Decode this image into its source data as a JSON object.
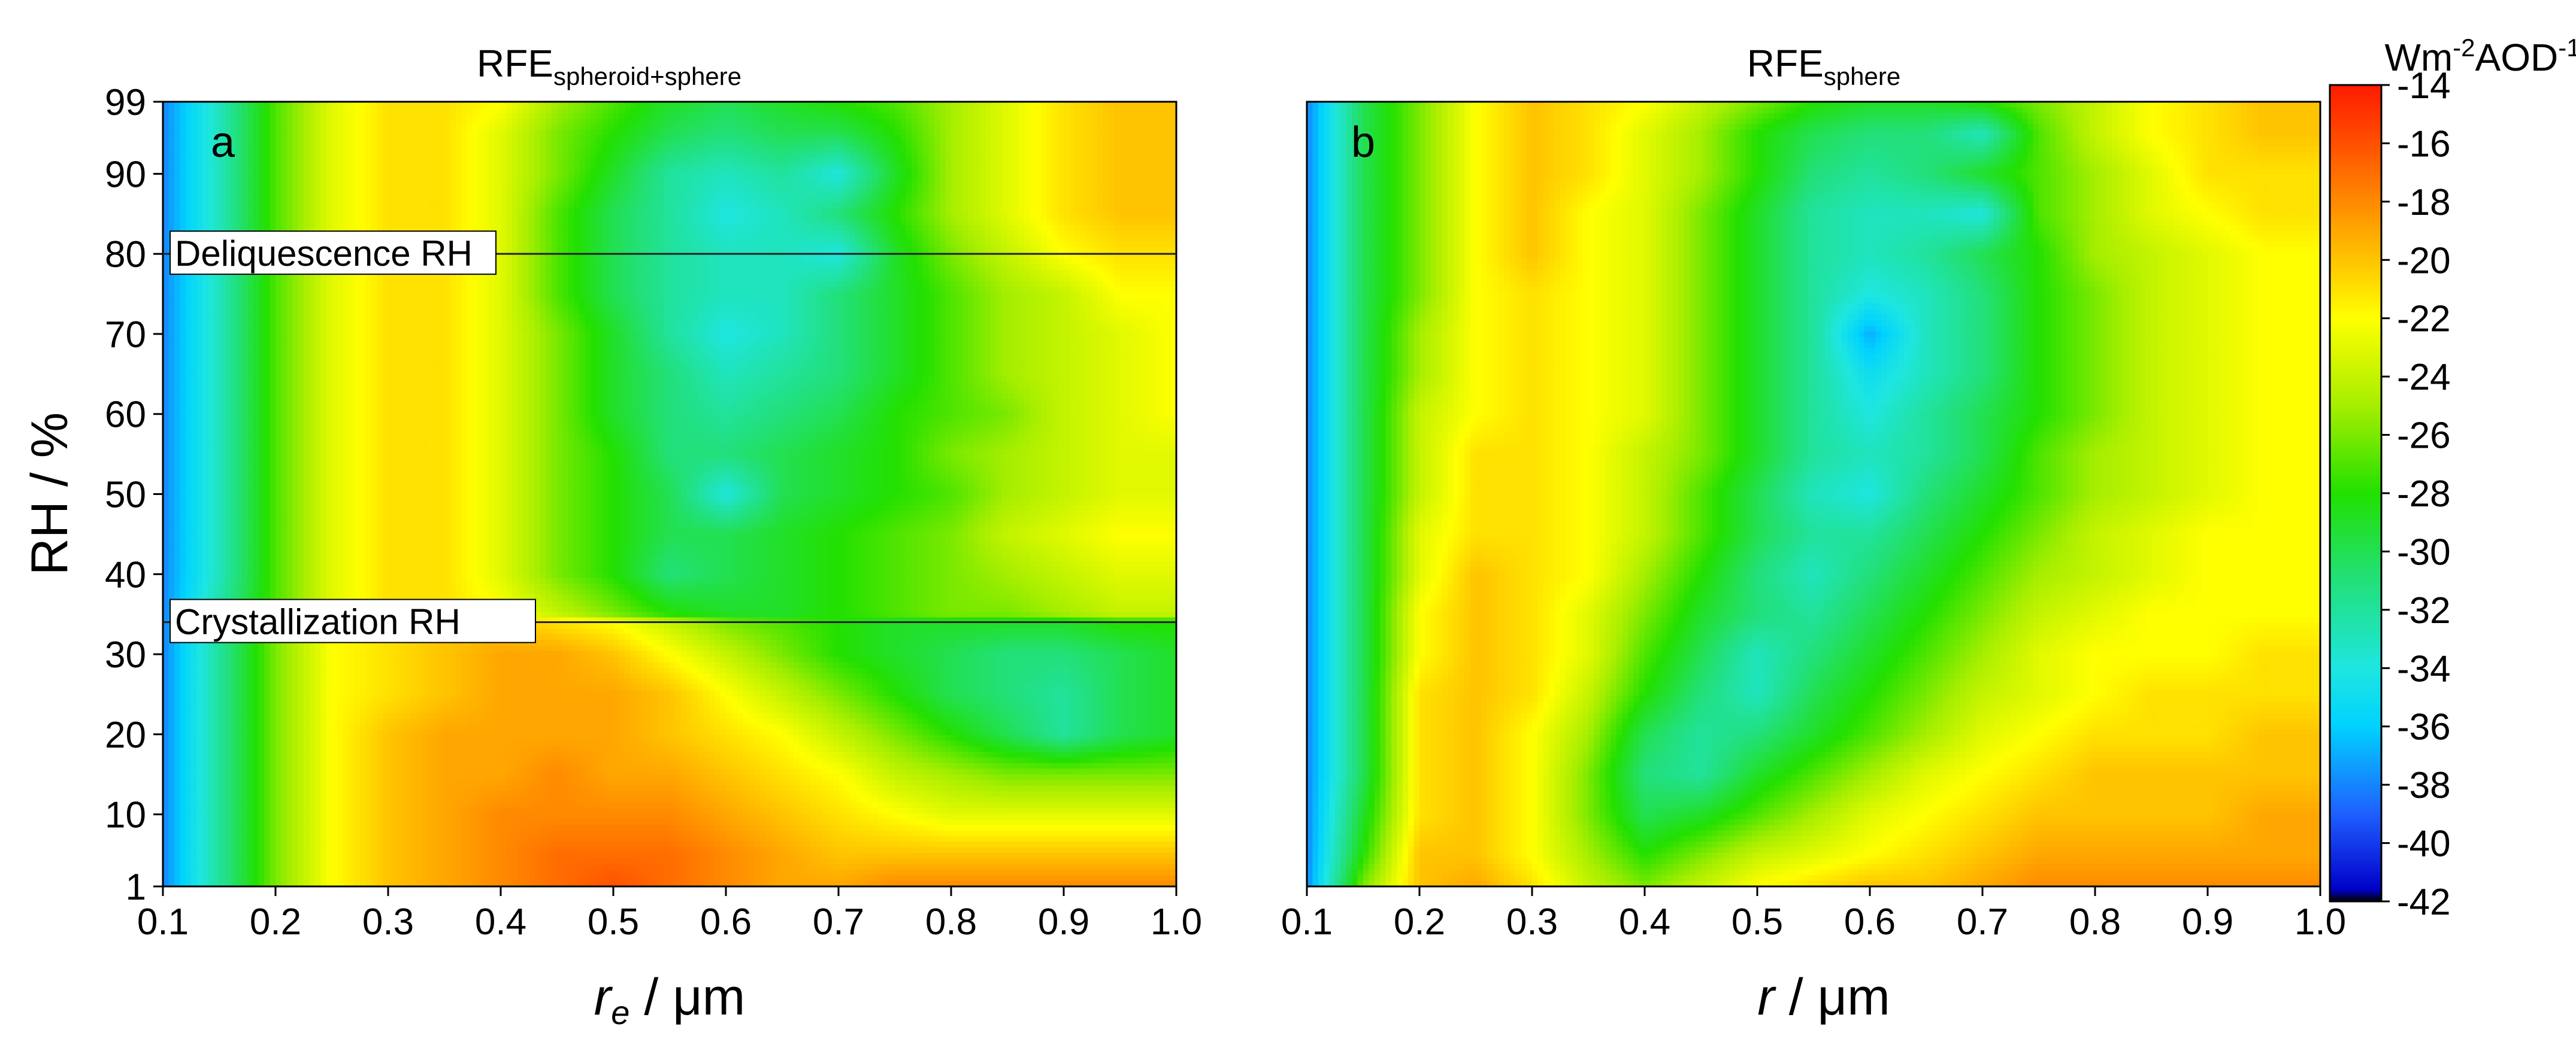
{
  "chart_data": [
    {
      "type": "heatmap",
      "panel_label": "a",
      "title_main": "RFE",
      "title_sub": "spheroid+sphere",
      "xlabel_italic": "r",
      "xlabel_sub": "e",
      "xlabel_rest": " / μm",
      "ylabel": "RH / %",
      "xlim": [
        0.1,
        1.0
      ],
      "ylim": [
        1,
        99
      ],
      "x_ticks": [
        "0.1",
        "0.2",
        "0.3",
        "0.4",
        "0.5",
        "0.6",
        "0.7",
        "0.8",
        "0.9",
        "1.0"
      ],
      "y_ticks": [
        "1",
        "10",
        "20",
        "30",
        "40",
        "50",
        "60",
        "70",
        "80",
        "90",
        "99"
      ],
      "annotations": [
        {
          "text": "Deliquescence RH",
          "rh": 80
        },
        {
          "text": "Crystallization RH",
          "rh": 34
        }
      ],
      "x": [
        0.1,
        0.15,
        0.2,
        0.25,
        0.3,
        0.35,
        0.4,
        0.45,
        0.5,
        0.55,
        0.6,
        0.65,
        0.7,
        0.75,
        0.8,
        0.85,
        0.9,
        0.95,
        1.0
      ],
      "y": [
        1,
        5,
        10,
        15,
        20,
        25,
        30,
        34,
        35,
        40,
        45,
        50,
        55,
        60,
        65,
        70,
        75,
        80,
        85,
        90,
        95,
        99
      ],
      "z": [
        [
          -38,
          -32,
          -26,
          -22,
          -20,
          -19,
          -18,
          -17,
          -16,
          -17,
          -18,
          -19,
          -19,
          -18,
          -18,
          -18,
          -18,
          -18,
          -18
        ],
        [
          -38,
          -32,
          -26,
          -22,
          -20,
          -19,
          -18,
          -17,
          -17,
          -17,
          -18,
          -19,
          -20,
          -20,
          -20,
          -20,
          -20,
          -20,
          -20
        ],
        [
          -38,
          -32,
          -26,
          -22,
          -20,
          -19,
          -18,
          -18,
          -18,
          -18,
          -19,
          -20,
          -21,
          -22,
          -23,
          -23,
          -23,
          -23,
          -23
        ],
        [
          -38,
          -32,
          -26,
          -22,
          -20,
          -19,
          -19,
          -18,
          -19,
          -19,
          -20,
          -21,
          -22,
          -24,
          -25,
          -26,
          -26,
          -26,
          -26
        ],
        [
          -38,
          -32,
          -26,
          -22,
          -20,
          -19,
          -19,
          -19,
          -19,
          -20,
          -21,
          -22,
          -24,
          -26,
          -28,
          -30,
          -32,
          -30,
          -29
        ],
        [
          -38,
          -32,
          -26,
          -22,
          -21,
          -20,
          -19,
          -19,
          -19,
          -20,
          -22,
          -24,
          -26,
          -28,
          -30,
          -31,
          -32,
          -30,
          -29
        ],
        [
          -38,
          -32,
          -26,
          -22,
          -21,
          -20,
          -19,
          -19,
          -20,
          -22,
          -24,
          -26,
          -28,
          -29,
          -30,
          -31,
          -31,
          -30,
          -29
        ],
        [
          -38,
          -32,
          -26,
          -22,
          -21,
          -20,
          -20,
          -21,
          -22,
          -24,
          -26,
          -27,
          -28,
          -29,
          -29,
          -29,
          -29,
          -28,
          -28
        ],
        [
          -38,
          -32,
          -27,
          -23,
          -21,
          -21,
          -22,
          -24,
          -26,
          -28,
          -29,
          -29,
          -28,
          -27,
          -26,
          -26,
          -25,
          -24,
          -24
        ],
        [
          -38,
          -33,
          -27,
          -23,
          -21,
          -21,
          -23,
          -26,
          -28,
          -31,
          -30,
          -29,
          -28,
          -27,
          -26,
          -25,
          -24,
          -23,
          -23
        ],
        [
          -38,
          -33,
          -27,
          -23,
          -21,
          -21,
          -23,
          -26,
          -28,
          -30,
          -30,
          -29,
          -28,
          -27,
          -26,
          -24,
          -23,
          -22,
          -22
        ],
        [
          -38,
          -33,
          -27,
          -23,
          -21,
          -21,
          -23,
          -26,
          -28,
          -30,
          -34,
          -30,
          -29,
          -28,
          -27,
          -25,
          -24,
          -23,
          -23
        ],
        [
          -38,
          -33,
          -27,
          -23,
          -21,
          -21,
          -23,
          -26,
          -28,
          -31,
          -31,
          -30,
          -29,
          -28,
          -26,
          -25,
          -24,
          -23,
          -23
        ],
        [
          -38,
          -33,
          -27,
          -23,
          -21,
          -21,
          -23,
          -26,
          -29,
          -31,
          -32,
          -31,
          -30,
          -28,
          -27,
          -26,
          -24,
          -23,
          -22
        ],
        [
          -38,
          -33,
          -27,
          -23,
          -21,
          -21,
          -23,
          -26,
          -29,
          -31,
          -33,
          -32,
          -31,
          -29,
          -27,
          -25,
          -24,
          -23,
          -22
        ],
        [
          -38,
          -33,
          -27,
          -23,
          -21,
          -21,
          -23,
          -26,
          -29,
          -32,
          -34,
          -33,
          -31,
          -29,
          -27,
          -25,
          -24,
          -23,
          -22
        ],
        [
          -38,
          -33,
          -27,
          -23,
          -21,
          -21,
          -23,
          -27,
          -30,
          -32,
          -33,
          -33,
          -31,
          -29,
          -27,
          -25,
          -24,
          -22,
          -22
        ],
        [
          -38,
          -33,
          -27,
          -23,
          -21,
          -21,
          -23,
          -27,
          -30,
          -32,
          -33,
          -33,
          -34,
          -29,
          -26,
          -24,
          -22,
          -21,
          -21
        ],
        [
          -38,
          -33,
          -27,
          -23,
          -21,
          -21,
          -23,
          -27,
          -30,
          -32,
          -34,
          -33,
          -31,
          -28,
          -25,
          -23,
          -21,
          -20,
          -20
        ],
        [
          -38,
          -33,
          -27,
          -23,
          -21,
          -21,
          -23,
          -26,
          -29,
          -32,
          -33,
          -32,
          -34,
          -29,
          -25,
          -23,
          -21,
          -20,
          -20
        ],
        [
          -38,
          -33,
          -27,
          -23,
          -21,
          -21,
          -23,
          -26,
          -28,
          -30,
          -31,
          -30,
          -30,
          -28,
          -25,
          -23,
          -21,
          -20,
          -20
        ],
        [
          -38,
          -33,
          -27,
          -23,
          -21,
          -21,
          -22,
          -25,
          -27,
          -29,
          -30,
          -29,
          -28,
          -27,
          -25,
          -23,
          -21,
          -20,
          -20
        ]
      ]
    },
    {
      "type": "heatmap",
      "panel_label": "b",
      "title_main": "RFE",
      "title_sub": "sphere",
      "xlabel_italic": "r",
      "xlabel_sub": "",
      "xlabel_rest": " / μm",
      "ylabel": "",
      "xlim": [
        0.1,
        1.0
      ],
      "ylim": [
        1,
        99
      ],
      "x_ticks": [
        "0.1",
        "0.2",
        "0.3",
        "0.4",
        "0.5",
        "0.6",
        "0.7",
        "0.8",
        "0.9",
        "1.0"
      ],
      "y_ticks": [],
      "annotations": [],
      "x": [
        0.1,
        0.15,
        0.2,
        0.25,
        0.3,
        0.35,
        0.4,
        0.45,
        0.5,
        0.55,
        0.6,
        0.65,
        0.7,
        0.75,
        0.8,
        0.85,
        0.9,
        0.95,
        1.0
      ],
      "y": [
        1,
        5,
        10,
        15,
        20,
        25,
        30,
        35,
        40,
        45,
        50,
        55,
        60,
        65,
        70,
        75,
        80,
        85,
        90,
        95,
        99
      ],
      "z": [
        [
          -38,
          -26,
          -20,
          -19,
          -21,
          -24,
          -26,
          -24,
          -22,
          -21,
          -20,
          -20,
          -19,
          -18,
          -18,
          -18,
          -18,
          -18,
          -18
        ],
        [
          -38,
          -28,
          -20,
          -20,
          -22,
          -25,
          -28,
          -26,
          -24,
          -23,
          -22,
          -21,
          -20,
          -19,
          -19,
          -19,
          -19,
          -19,
          -19
        ],
        [
          -38,
          -29,
          -21,
          -20,
          -22,
          -26,
          -30,
          -29,
          -27,
          -25,
          -23,
          -22,
          -21,
          -20,
          -20,
          -20,
          -20,
          -19,
          -19
        ],
        [
          -38,
          -30,
          -21,
          -20,
          -22,
          -26,
          -31,
          -32,
          -29,
          -27,
          -25,
          -23,
          -22,
          -21,
          -20,
          -20,
          -20,
          -20,
          -20
        ],
        [
          -38,
          -30,
          -21,
          -20,
          -22,
          -25,
          -30,
          -32,
          -31,
          -29,
          -27,
          -25,
          -23,
          -22,
          -21,
          -21,
          -21,
          -20,
          -20
        ],
        [
          -38,
          -30,
          -21,
          -20,
          -21,
          -24,
          -28,
          -31,
          -33,
          -30,
          -28,
          -26,
          -24,
          -23,
          -22,
          -21,
          -21,
          -21,
          -21
        ],
        [
          -38,
          -30,
          -22,
          -20,
          -21,
          -23,
          -27,
          -30,
          -33,
          -31,
          -29,
          -27,
          -25,
          -23,
          -22,
          -22,
          -22,
          -21,
          -21
        ],
        [
          -38,
          -30,
          -22,
          -20,
          -21,
          -23,
          -26,
          -29,
          -31,
          -32,
          -30,
          -28,
          -26,
          -24,
          -23,
          -22,
          -22,
          -22,
          -22
        ],
        [
          -38,
          -30,
          -23,
          -20,
          -21,
          -22,
          -25,
          -28,
          -31,
          -33,
          -31,
          -29,
          -27,
          -25,
          -24,
          -23,
          -22,
          -22,
          -22
        ],
        [
          -38,
          -30,
          -23,
          -21,
          -21,
          -22,
          -24,
          -27,
          -30,
          -32,
          -32,
          -30,
          -28,
          -26,
          -24,
          -23,
          -22,
          -22,
          -22
        ],
        [
          -38,
          -30,
          -24,
          -21,
          -21,
          -22,
          -24,
          -27,
          -30,
          -33,
          -34,
          -31,
          -29,
          -27,
          -25,
          -24,
          -23,
          -22,
          -22
        ],
        [
          -38,
          -30,
          -24,
          -21,
          -21,
          -22,
          -24,
          -26,
          -29,
          -32,
          -33,
          -32,
          -30,
          -27,
          -25,
          -24,
          -23,
          -22,
          -22
        ],
        [
          -38,
          -30,
          -24,
          -22,
          -21,
          -22,
          -23,
          -26,
          -29,
          -32,
          -34,
          -32,
          -30,
          -28,
          -26,
          -24,
          -23,
          -22,
          -22
        ],
        [
          -38,
          -30,
          -25,
          -22,
          -21,
          -22,
          -23,
          -26,
          -29,
          -32,
          -35,
          -33,
          -31,
          -28,
          -26,
          -24,
          -23,
          -22,
          -22
        ],
        [
          -38,
          -30,
          -25,
          -22,
          -21,
          -22,
          -23,
          -26,
          -29,
          -32,
          -37,
          -33,
          -31,
          -28,
          -26,
          -24,
          -23,
          -22,
          -22
        ],
        [
          -38,
          -30,
          -26,
          -22,
          -21,
          -22,
          -23,
          -26,
          -29,
          -32,
          -34,
          -33,
          -31,
          -28,
          -26,
          -24,
          -23,
          -22,
          -22
        ],
        [
          -38,
          -30,
          -26,
          -22,
          -20,
          -22,
          -23,
          -26,
          -29,
          -32,
          -33,
          -32,
          -30,
          -28,
          -25,
          -24,
          -23,
          -22,
          -22
        ],
        [
          -38,
          -30,
          -26,
          -22,
          -20,
          -22,
          -23,
          -26,
          -29,
          -32,
          -33,
          -33,
          -34,
          -27,
          -25,
          -23,
          -22,
          -21,
          -21
        ],
        [
          -38,
          -30,
          -26,
          -22,
          -20,
          -21,
          -23,
          -25,
          -28,
          -31,
          -32,
          -31,
          -29,
          -27,
          -25,
          -23,
          -21,
          -21,
          -21
        ],
        [
          -38,
          -30,
          -26,
          -22,
          -20,
          -21,
          -23,
          -25,
          -28,
          -30,
          -31,
          -31,
          -33,
          -27,
          -24,
          -22,
          -21,
          -20,
          -20
        ],
        [
          -38,
          -30,
          -26,
          -22,
          -20,
          -21,
          -22,
          -24,
          -26,
          -28,
          -29,
          -29,
          -28,
          -26,
          -24,
          -22,
          -21,
          -20,
          -20
        ]
      ]
    }
  ],
  "colorbar": {
    "unit_a": "Wm",
    "unit_b": "-2",
    "unit_c": "AOD",
    "unit_d": "-1",
    "min": -42,
    "max": -14,
    "ticks": [
      "-14",
      "-16",
      "-18",
      "-20",
      "-22",
      "-24",
      "-26",
      "-28",
      "-30",
      "-32",
      "-34",
      "-36",
      "-38",
      "-40",
      "-42"
    ],
    "color_stops": [
      {
        "v": -42,
        "c": "#000000"
      },
      {
        "v": -41.6,
        "c": "#0000c8"
      },
      {
        "v": -39,
        "c": "#1f5fff"
      },
      {
        "v": -36,
        "c": "#00d2ff"
      },
      {
        "v": -34,
        "c": "#1ee6e0"
      },
      {
        "v": -31,
        "c": "#22e07a"
      },
      {
        "v": -28,
        "c": "#22e000"
      },
      {
        "v": -25,
        "c": "#a6ee00"
      },
      {
        "v": -22,
        "c": "#ffff00"
      },
      {
        "v": -20,
        "c": "#ffc400"
      },
      {
        "v": -18,
        "c": "#ff8a00"
      },
      {
        "v": -16,
        "c": "#ff5000"
      },
      {
        "v": -14,
        "c": "#ff1a00"
      }
    ]
  }
}
